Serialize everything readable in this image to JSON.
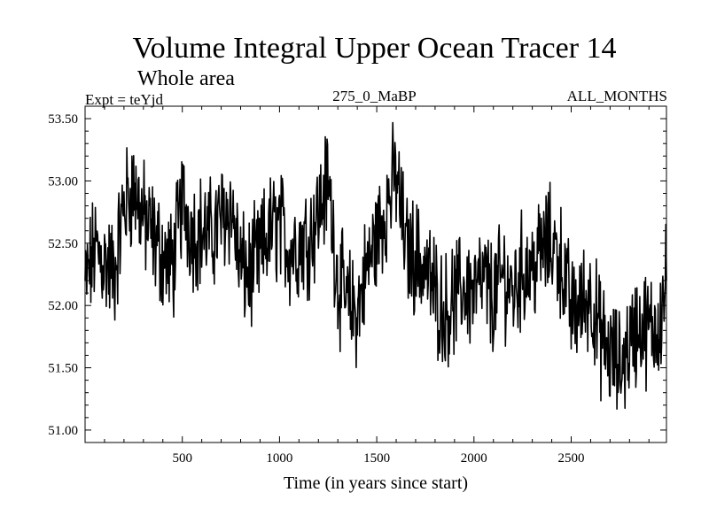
{
  "header": {
    "title": "Volume Integral Upper Ocean Tracer 14",
    "subtitle": "Whole area",
    "expt_label": "Expt = teYjd",
    "center_label": "275_0_MaBP",
    "right_label": "ALL_MONTHS"
  },
  "chart_data": {
    "type": "line",
    "title": "Volume Integral Upper Ocean Tracer 14",
    "xlabel": "Time (in years since start)",
    "ylabel": "",
    "xlim": [
      0,
      2990
    ],
    "ylim": [
      50.9,
      53.6
    ],
    "x_ticks": [
      500,
      1000,
      1500,
      2000,
      2500
    ],
    "x_tick_labels": [
      "500",
      "1000",
      "1500",
      "2000",
      "2500"
    ],
    "y_ticks": [
      51.0,
      51.5,
      52.0,
      52.5,
      53.0,
      53.5
    ],
    "y_tick_labels": [
      "51.00",
      "51.50",
      "52.00",
      "52.50",
      "53.00",
      "53.50"
    ],
    "grid": false,
    "series": [
      {
        "name": "Tracer 14",
        "color": "#000000",
        "x": [
          0,
          50,
          100,
          150,
          200,
          250,
          300,
          350,
          400,
          450,
          500,
          550,
          600,
          650,
          700,
          750,
          800,
          850,
          900,
          950,
          1000,
          1050,
          1100,
          1150,
          1200,
          1250,
          1300,
          1350,
          1400,
          1450,
          1500,
          1550,
          1600,
          1650,
          1700,
          1750,
          1800,
          1850,
          1900,
          1950,
          2000,
          2050,
          2100,
          2150,
          2200,
          2250,
          2300,
          2350,
          2400,
          2450,
          2500,
          2550,
          2600,
          2650,
          2700,
          2750,
          2800,
          2850,
          2900,
          2950,
          2990
        ],
        "values": [
          52.15,
          52.45,
          52.35,
          52.25,
          52.8,
          52.95,
          52.7,
          52.55,
          52.4,
          52.3,
          52.85,
          52.6,
          52.6,
          52.55,
          52.7,
          52.8,
          52.3,
          52.25,
          52.4,
          52.6,
          52.65,
          52.45,
          52.5,
          52.55,
          52.75,
          53.0,
          52.2,
          52.0,
          51.95,
          52.3,
          52.55,
          52.8,
          53.05,
          52.45,
          52.4,
          52.3,
          52.1,
          51.95,
          52.05,
          52.15,
          52.1,
          52.2,
          52.05,
          52.25,
          52.1,
          52.3,
          52.3,
          52.45,
          52.5,
          52.35,
          51.95,
          52.0,
          52.1,
          51.75,
          51.6,
          51.5,
          51.7,
          51.85,
          51.8,
          51.85,
          52.2
        ]
      }
    ]
  }
}
